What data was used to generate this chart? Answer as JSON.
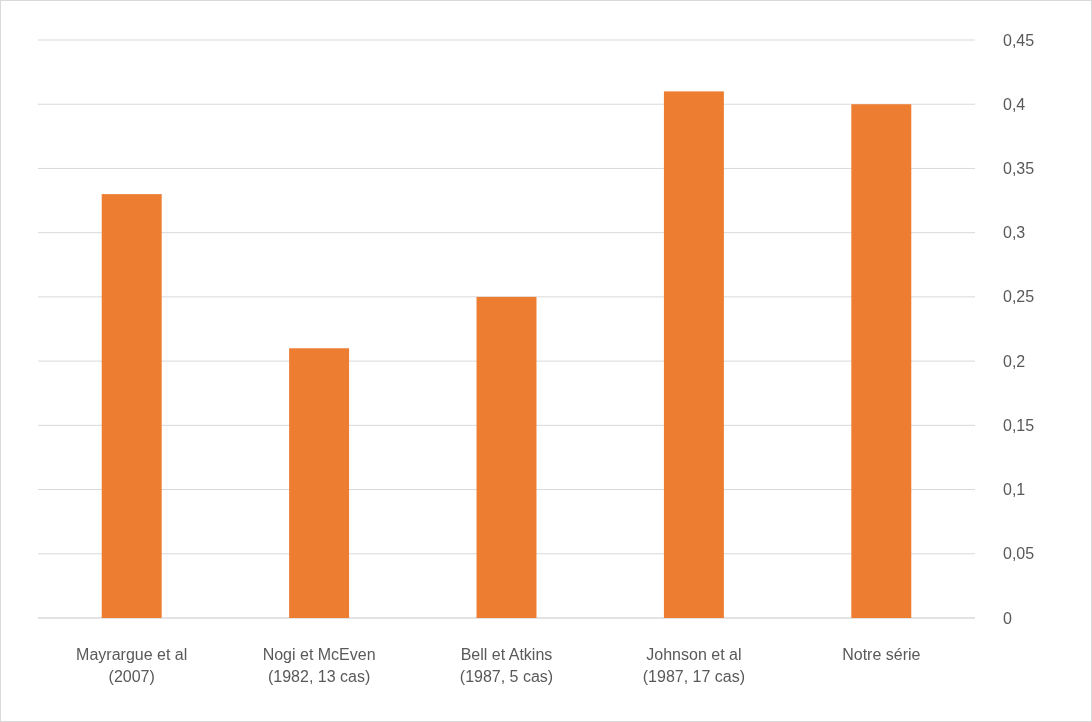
{
  "chart_data": {
    "type": "bar",
    "categories": [
      "Mayrargue et al (2007)",
      "Nogi et McEven (1982, 13 cas)",
      "Bell et Atkins (1987, 5 cas)",
      "Johnson et al (1987, 17 cas)",
      "Notre série"
    ],
    "values": [
      0.33,
      0.21,
      0.25,
      0.41,
      0.4
    ],
    "color": "#ed7d31",
    "ylim": [
      0,
      0.45
    ],
    "yticks": [
      0,
      {
        "value": 0.05,
        "label": "0,05"
      },
      {
        "value": 0.1,
        "label": "0,1"
      },
      {
        "value": 0.15,
        "label": "0,15"
      },
      {
        "value": 0.2,
        "label": "0,2"
      },
      {
        "value": 0.25,
        "label": "0,25"
      },
      {
        "value": 0.3,
        "label": "0,3"
      },
      {
        "value": 0.35,
        "label": "0,35"
      },
      {
        "value": 0.4,
        "label": "0,4"
      },
      {
        "value": 0.45,
        "label": "0,45"
      }
    ],
    "grid": "y"
  }
}
